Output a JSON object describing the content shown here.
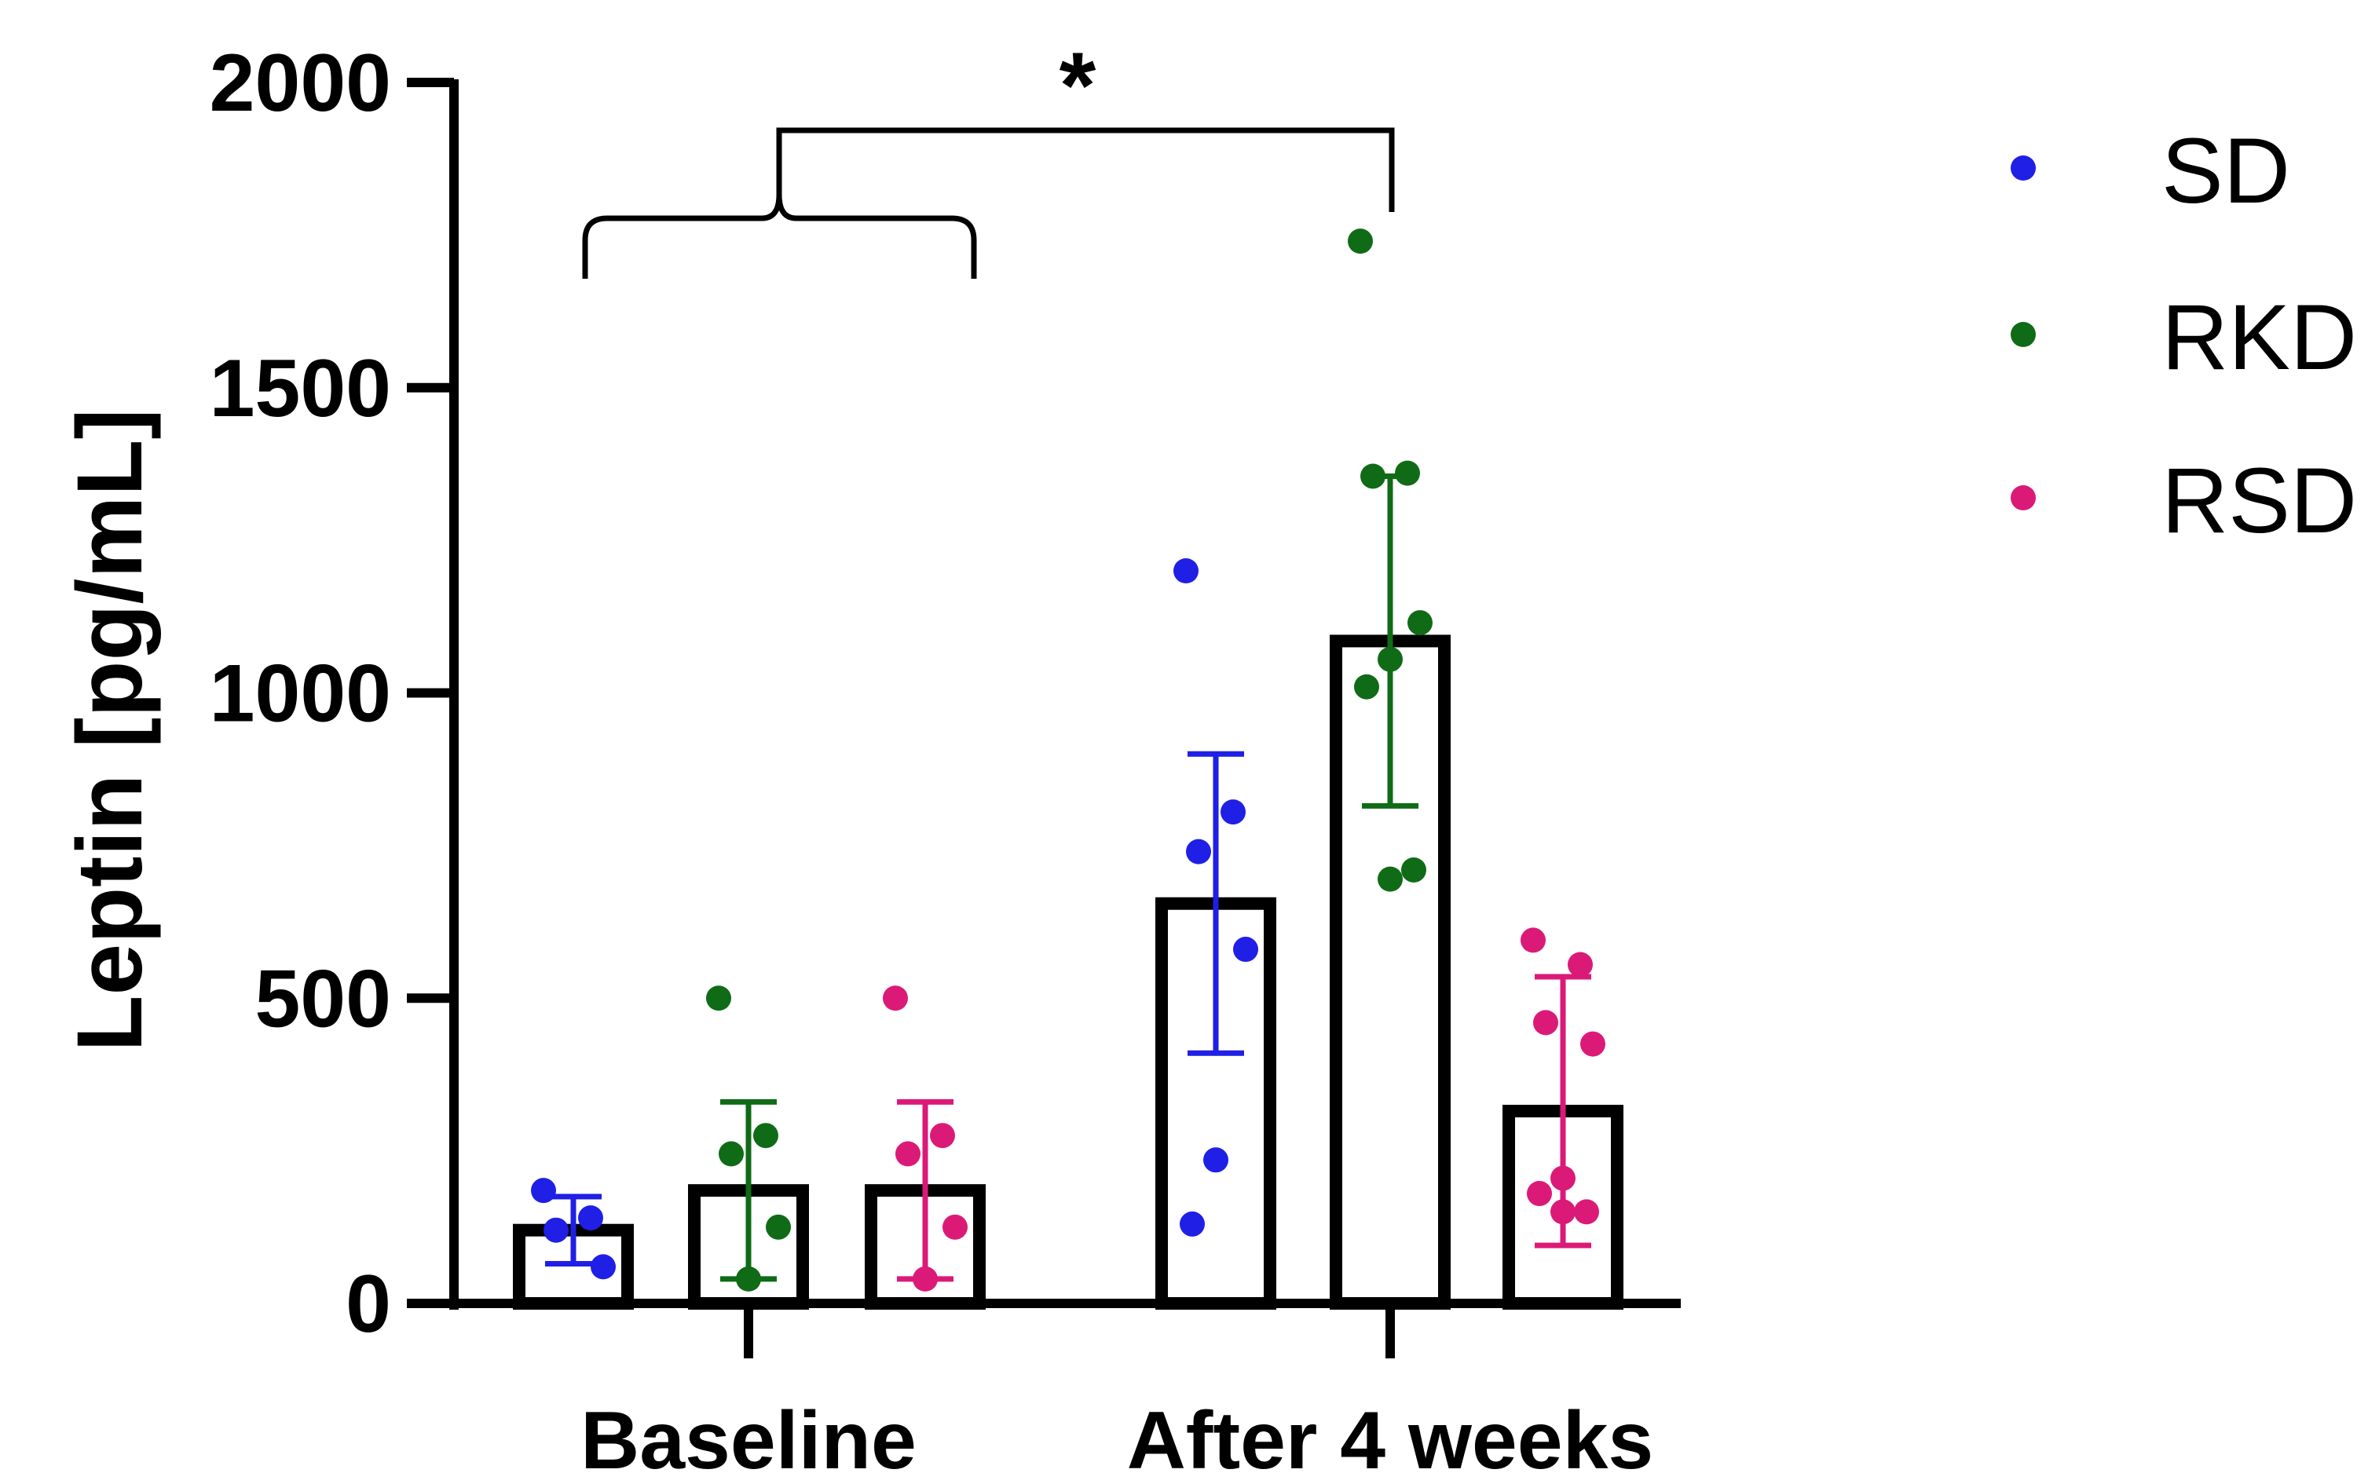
{
  "chart_data": {
    "type": "bar",
    "title": "",
    "xlabel": "",
    "ylabel": "Leptin [pg/mL]",
    "ylim": [
      0,
      2000
    ],
    "yticks": [
      0,
      500,
      1000,
      1500,
      2000
    ],
    "categories": [
      "Baseline",
      "After 4 weeks"
    ],
    "series": [
      {
        "name": "SD",
        "color": "#1f1fe6",
        "means": [
          120,
          655
        ],
        "sd": [
          55,
          245
        ],
        "points": [
          [
            185,
            140,
            120,
            60
          ],
          [
            1200,
            805,
            740,
            580,
            235,
            130
          ]
        ]
      },
      {
        "name": "RKD",
        "color": "#0f6b16",
        "means": [
          185,
          1085
        ],
        "sd": [
          145,
          270
        ],
        "points": [
          [
            500,
            275,
            245,
            125,
            40
          ],
          [
            1740,
            1360,
            1355,
            1115,
            1055,
            1010,
            710,
            695
          ]
        ]
      },
      {
        "name": "RSD",
        "color": "#db1a78",
        "means": [
          185,
          315
        ],
        "sd": [
          145,
          220
        ],
        "points": [
          [
            500,
            275,
            245,
            125,
            40
          ],
          [
            595,
            555,
            460,
            425,
            205,
            180,
            150,
            150
          ]
        ]
      }
    ],
    "annotations": [
      {
        "type": "significance",
        "label": "*",
        "from": "Baseline (all groups)",
        "to": "After 4 weeks RKD"
      }
    ],
    "legend": {
      "position": "top-right"
    }
  }
}
